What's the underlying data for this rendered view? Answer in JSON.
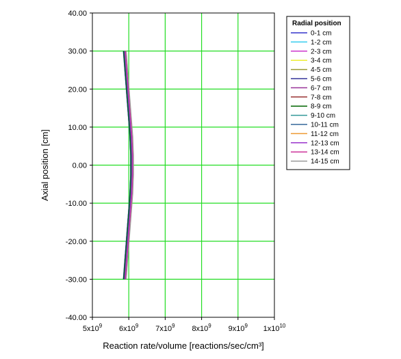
{
  "chart_data": {
    "type": "line",
    "xlabel": "Reaction rate/volume [reactions/sec/cm³]",
    "ylabel": "Axial position [cm]",
    "xlim": [
      5000000000.0,
      10000000000.0
    ],
    "ylim": [
      -40,
      40
    ],
    "x_ticks": [
      5000000000.0,
      6000000000.0,
      7000000000.0,
      8000000000.0,
      9000000000.0,
      10000000000.0
    ],
    "x_tick_labels": [
      {
        "base": "5x10",
        "exp": "9"
      },
      {
        "base": "6x10",
        "exp": "9"
      },
      {
        "base": "7x10",
        "exp": "9"
      },
      {
        "base": "8x10",
        "exp": "9"
      },
      {
        "base": "9x10",
        "exp": "9"
      },
      {
        "base": "1x10",
        "exp": "10"
      }
    ],
    "y_ticks": [
      -40,
      -30,
      -20,
      -10,
      0,
      10,
      20,
      30,
      40
    ],
    "y_tick_labels": [
      "-40.00",
      "-30.00",
      "-20.00",
      "-10.00",
      "0.00",
      "10.00",
      "20.00",
      "30.00",
      "40.00"
    ],
    "grid": true,
    "grid_color": "#22dd22",
    "legend_title": "Radial position",
    "legend_position": "top-right",
    "y": [
      -30,
      -27.5,
      -25,
      -22.5,
      -20,
      -17.5,
      -15,
      -12.5,
      -10,
      -7.5,
      -5,
      -2.5,
      0,
      2.5,
      5,
      7.5,
      10,
      12.5,
      15,
      17.5,
      20,
      22.5,
      25,
      27.5,
      30
    ],
    "series": [
      {
        "name": "0-1 cm",
        "color": "#3333cc",
        "x": [
          5860000000.0,
          5880000000.0,
          5890000000.0,
          5910000000.0,
          5930000000.0,
          5950000000.0,
          5970000000.0,
          5990000000.0,
          6010000000.0,
          6030000000.0,
          6040000000.0,
          6050000000.0,
          6050000000.0,
          6050000000.0,
          6040000000.0,
          6030000000.0,
          6010000000.0,
          5990000000.0,
          5970000000.0,
          5950000000.0,
          5930000000.0,
          5910000000.0,
          5890000000.0,
          5880000000.0,
          5860000000.0
        ]
      },
      {
        "name": "1-2 cm",
        "color": "#33ccee",
        "x": [
          5850000000.0,
          5870000000.0,
          5890000000.0,
          5910000000.0,
          5930000000.0,
          5950000000.0,
          5970000000.0,
          5990000000.0,
          6010000000.0,
          6030000000.0,
          6040000000.0,
          6050000000.0,
          6050000000.0,
          6050000000.0,
          6040000000.0,
          6030000000.0,
          6010000000.0,
          5990000000.0,
          5970000000.0,
          5950000000.0,
          5930000000.0,
          5910000000.0,
          5890000000.0,
          5870000000.0,
          5850000000.0
        ]
      },
      {
        "name": "2-3 cm",
        "color": "#cc33cc",
        "x": [
          5870000000.0,
          5890000000.0,
          5910000000.0,
          5930000000.0,
          5950000000.0,
          5970000000.0,
          5990000000.0,
          6010000000.0,
          6030000000.0,
          6050000000.0,
          6060000000.0,
          6070000000.0,
          6070000000.0,
          6070000000.0,
          6060000000.0,
          6050000000.0,
          6030000000.0,
          6010000000.0,
          5990000000.0,
          5970000000.0,
          5950000000.0,
          5930000000.0,
          5910000000.0,
          5890000000.0,
          5870000000.0
        ]
      },
      {
        "name": "3-4 cm",
        "color": "#eeee33",
        "x": [
          5860000000.0,
          5880000000.0,
          5900000000.0,
          5920000000.0,
          5940000000.0,
          5960000000.0,
          5980000000.0,
          6000000000.0,
          6020000000.0,
          6040000000.0,
          6050000000.0,
          6060000000.0,
          6060000000.0,
          6060000000.0,
          6050000000.0,
          6040000000.0,
          6020000000.0,
          6000000000.0,
          5980000000.0,
          5960000000.0,
          5940000000.0,
          5920000000.0,
          5900000000.0,
          5880000000.0,
          5860000000.0
        ]
      },
      {
        "name": "4-5 cm",
        "color": "#999933",
        "x": [
          5870000000.0,
          5890000000.0,
          5900000000.0,
          5920000000.0,
          5940000000.0,
          5960000000.0,
          5980000000.0,
          6000000000.0,
          6020000000.0,
          6040000000.0,
          6050000000.0,
          6060000000.0,
          6060000000.0,
          6060000000.0,
          6050000000.0,
          6040000000.0,
          6020000000.0,
          6000000000.0,
          5980000000.0,
          5960000000.0,
          5940000000.0,
          5920000000.0,
          5900000000.0,
          5890000000.0,
          5870000000.0
        ]
      },
      {
        "name": "5-6 cm",
        "color": "#333399",
        "x": [
          5850000000.0,
          5870000000.0,
          5890000000.0,
          5910000000.0,
          5930000000.0,
          5950000000.0,
          5970000000.0,
          5990000000.0,
          6010000000.0,
          6030000000.0,
          6040000000.0,
          6050000000.0,
          6050000000.0,
          6050000000.0,
          6040000000.0,
          6030000000.0,
          6010000000.0,
          5990000000.0,
          5970000000.0,
          5950000000.0,
          5930000000.0,
          5910000000.0,
          5890000000.0,
          5870000000.0,
          5850000000.0
        ]
      },
      {
        "name": "6-7 cm",
        "color": "#993399",
        "x": [
          5880000000.0,
          5900000000.0,
          5920000000.0,
          5940000000.0,
          5960000000.0,
          5980000000.0,
          6000000000.0,
          6020000000.0,
          6040000000.0,
          6060000000.0,
          6070000000.0,
          6080000000.0,
          6080000000.0,
          6080000000.0,
          6070000000.0,
          6060000000.0,
          6040000000.0,
          6020000000.0,
          6000000000.0,
          5980000000.0,
          5960000000.0,
          5940000000.0,
          5920000000.0,
          5900000000.0,
          5880000000.0
        ]
      },
      {
        "name": "7-8 cm",
        "color": "#993333",
        "x": [
          5870000000.0,
          5890000000.0,
          5910000000.0,
          5930000000.0,
          5950000000.0,
          5970000000.0,
          5990000000.0,
          6010000000.0,
          6030000000.0,
          6050000000.0,
          6060000000.0,
          6070000000.0,
          6070000000.0,
          6070000000.0,
          6060000000.0,
          6050000000.0,
          6030000000.0,
          6010000000.0,
          5990000000.0,
          5970000000.0,
          5950000000.0,
          5930000000.0,
          5910000000.0,
          5890000000.0,
          5870000000.0
        ]
      },
      {
        "name": "8-9 cm",
        "color": "#006600",
        "x": [
          5860000000.0,
          5880000000.0,
          5900000000.0,
          5920000000.0,
          5940000000.0,
          5960000000.0,
          5980000000.0,
          6000000000.0,
          6020000000.0,
          6040000000.0,
          6050000000.0,
          6060000000.0,
          6060000000.0,
          6060000000.0,
          6050000000.0,
          6040000000.0,
          6020000000.0,
          6000000000.0,
          5980000000.0,
          5960000000.0,
          5940000000.0,
          5920000000.0,
          5900000000.0,
          5880000000.0,
          5860000000.0
        ]
      },
      {
        "name": "9-10 cm",
        "color": "#339999",
        "x": [
          5890000000.0,
          5910000000.0,
          5930000000.0,
          5950000000.0,
          5970000000.0,
          5990000000.0,
          6010000000.0,
          6030000000.0,
          6050000000.0,
          6070000000.0,
          6080000000.0,
          6090000000.0,
          6090000000.0,
          6090000000.0,
          6080000000.0,
          6070000000.0,
          6050000000.0,
          6030000000.0,
          6010000000.0,
          5990000000.0,
          5970000000.0,
          5950000000.0,
          5930000000.0,
          5910000000.0,
          5890000000.0
        ]
      },
      {
        "name": "10-11 cm",
        "color": "#336699",
        "x": [
          5880000000.0,
          5900000000.0,
          5920000000.0,
          5940000000.0,
          5960000000.0,
          5980000000.0,
          6000000000.0,
          6020000000.0,
          6040000000.0,
          6060000000.0,
          6070000000.0,
          6080000000.0,
          6080000000.0,
          6080000000.0,
          6070000000.0,
          6060000000.0,
          6040000000.0,
          6020000000.0,
          6000000000.0,
          5980000000.0,
          5960000000.0,
          5940000000.0,
          5920000000.0,
          5900000000.0,
          5880000000.0
        ]
      },
      {
        "name": "11-12 cm",
        "color": "#ee9933",
        "x": [
          5900000000.0,
          5920000000.0,
          5940000000.0,
          5960000000.0,
          5980000000.0,
          6000000000.0,
          6020000000.0,
          6040000000.0,
          6060000000.0,
          6080000000.0,
          6090000000.0,
          6100000000.0,
          6100000000.0,
          6100000000.0,
          6090000000.0,
          6080000000.0,
          6060000000.0,
          6040000000.0,
          6020000000.0,
          6000000000.0,
          5980000000.0,
          5960000000.0,
          5940000000.0,
          5920000000.0,
          5900000000.0
        ]
      },
      {
        "name": "12-13 cm",
        "color": "#9933cc",
        "x": [
          5890000000.0,
          5910000000.0,
          5930000000.0,
          5950000000.0,
          5970000000.0,
          5990000000.0,
          6010000000.0,
          6030000000.0,
          6050000000.0,
          6070000000.0,
          6080000000.0,
          6090000000.0,
          6090000000.0,
          6090000000.0,
          6080000000.0,
          6070000000.0,
          6050000000.0,
          6030000000.0,
          6010000000.0,
          5990000000.0,
          5970000000.0,
          5950000000.0,
          5930000000.0,
          5910000000.0,
          5890000000.0
        ]
      },
      {
        "name": "13-14 cm",
        "color": "#cc3399",
        "x": [
          5910000000.0,
          5930000000.0,
          5950000000.0,
          5970000000.0,
          5990000000.0,
          6010000000.0,
          6030000000.0,
          6050000000.0,
          6070000000.0,
          6090000000.0,
          6100000000.0,
          6110000000.0,
          6110000000.0,
          6110000000.0,
          6100000000.0,
          6090000000.0,
          6070000000.0,
          6050000000.0,
          6030000000.0,
          6010000000.0,
          5990000000.0,
          5970000000.0,
          5950000000.0,
          5930000000.0,
          5910000000.0
        ]
      },
      {
        "name": "14-15 cm",
        "color": "#999999",
        "x": [
          5930000000.0,
          5950000000.0,
          5970000000.0,
          5990000000.0,
          6010000000.0,
          6030000000.0,
          6050000000.0,
          6070000000.0,
          6090000000.0,
          6110000000.0,
          6120000000.0,
          6130000000.0,
          6130000000.0,
          6130000000.0,
          6120000000.0,
          6110000000.0,
          6090000000.0,
          6070000000.0,
          6050000000.0,
          6030000000.0,
          6010000000.0,
          5990000000.0,
          5970000000.0,
          5950000000.0,
          5930000000.0
        ]
      }
    ]
  }
}
